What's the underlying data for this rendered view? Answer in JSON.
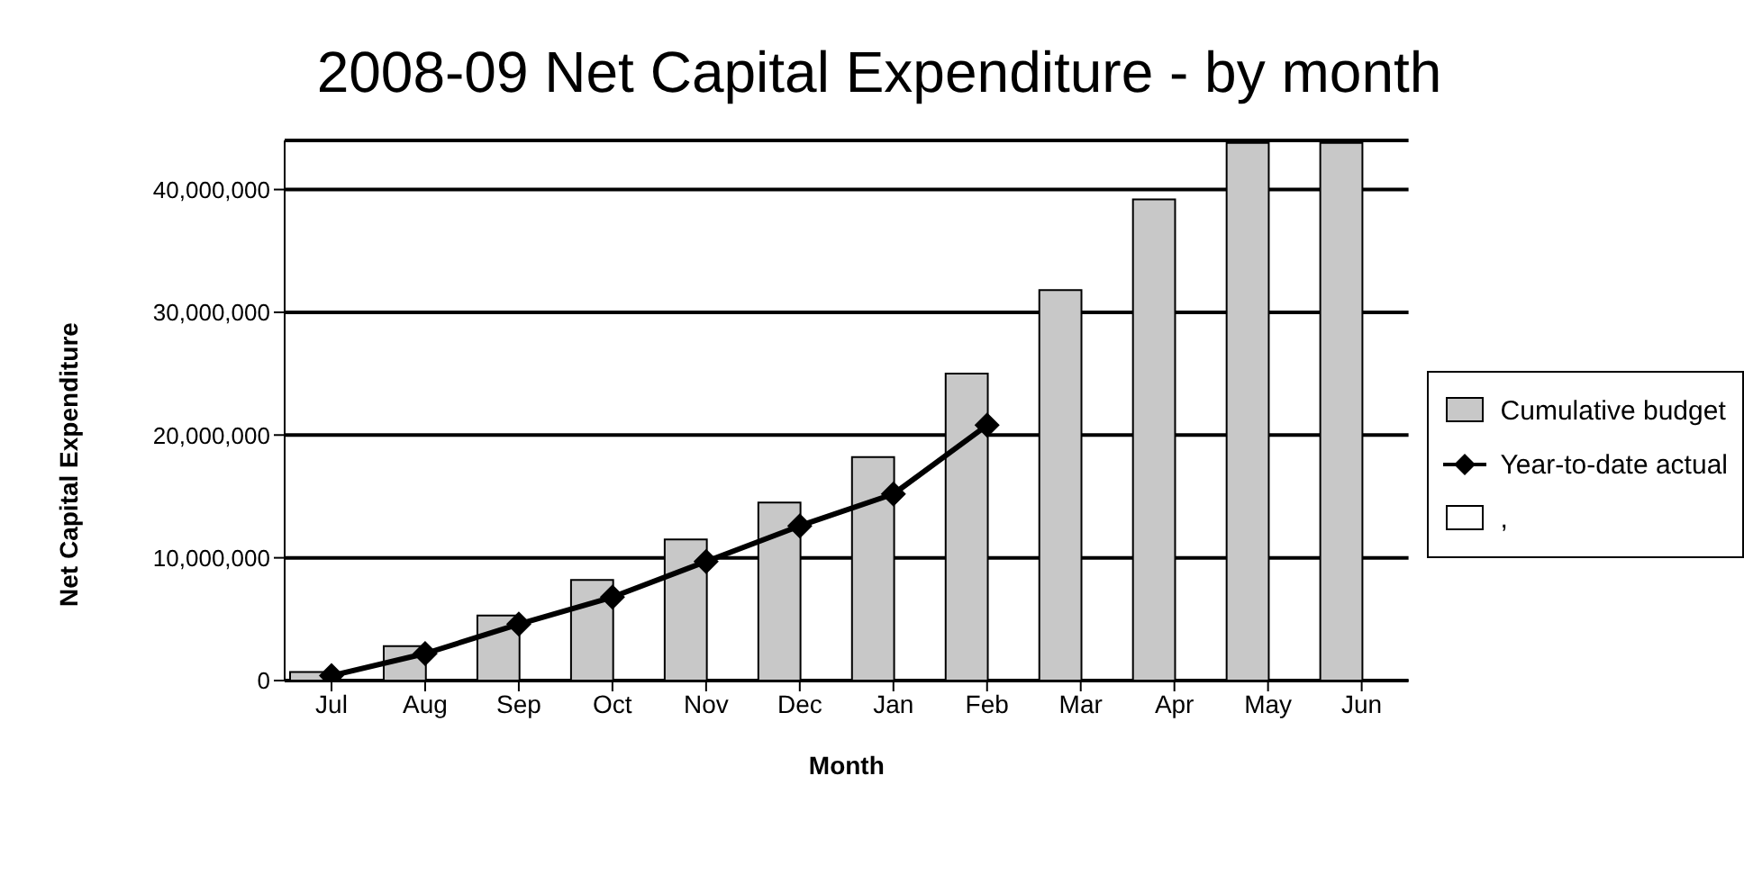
{
  "chart_data": {
    "type": "bar",
    "title": "2008-09 Net Capital Expenditure - by month",
    "xlabel": "Month",
    "ylabel": "Net Capital Expenditure",
    "categories": [
      "Jul",
      "Aug",
      "Sep",
      "Oct",
      "Nov",
      "Dec",
      "Jan",
      "Feb",
      "Mar",
      "Apr",
      "May",
      "Jun"
    ],
    "series": [
      {
        "name": "Cumulative budget",
        "color": "#c8c8c8",
        "values": [
          700000,
          2800000,
          5300000,
          8200000,
          11500000,
          14500000,
          18200000,
          25000000,
          31800000,
          39200000,
          43800000,
          43800000
        ]
      },
      {
        "name": "Year-to-date actual",
        "type": "line",
        "color": "#000000",
        "marker": "diamond",
        "values": [
          400000,
          2200000,
          4600000,
          6800000,
          9700000,
          12600000,
          15200000,
          20800000,
          null,
          null,
          null,
          null
        ]
      },
      {
        "name": ",",
        "color": "#ffffff",
        "values": [
          null,
          null,
          null,
          null,
          null,
          null,
          null,
          null,
          null,
          null,
          null,
          null
        ]
      }
    ],
    "ylim": [
      0,
      44000000
    ],
    "yticks": [
      0,
      {
        "value": 10000000,
        "label": "10,000,000"
      },
      {
        "value": 20000000,
        "label": "20,000,000"
      },
      {
        "value": 30000000,
        "label": "30,000,000"
      },
      {
        "value": 40000000,
        "label": "40,000,000"
      }
    ],
    "grid": "y",
    "legend": "right"
  }
}
